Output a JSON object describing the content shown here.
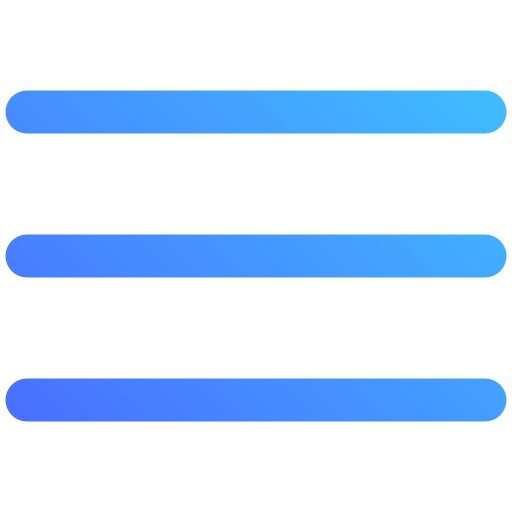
{
  "icon": {
    "name": "hamburger-menu-icon",
    "lines": 3,
    "gradient": {
      "start": "#4a66ff",
      "end": "#3fc6ff"
    }
  }
}
